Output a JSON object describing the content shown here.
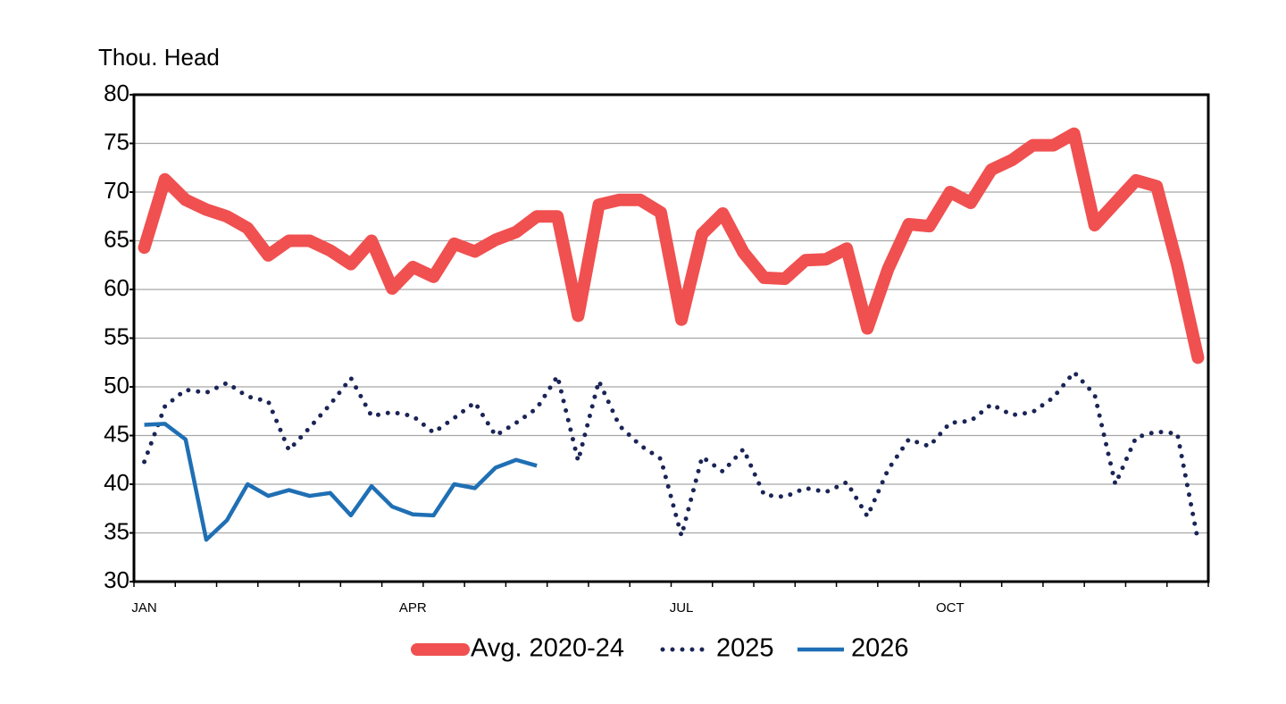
{
  "chart_data": {
    "type": "line",
    "y_label": "Thou. Head",
    "categories": [
      "JAN",
      null,
      null,
      null,
      null,
      null,
      null,
      null,
      null,
      null,
      null,
      null,
      null,
      "APR",
      null,
      null,
      null,
      null,
      null,
      null,
      null,
      null,
      null,
      null,
      null,
      null,
      "JUL",
      null,
      null,
      null,
      null,
      null,
      null,
      null,
      null,
      null,
      null,
      null,
      null,
      "OCT",
      null,
      null,
      null,
      null,
      null,
      null,
      null,
      null,
      null,
      null,
      null,
      null
    ],
    "series": [
      {
        "name": "Avg. 2020-24",
        "color": "#f05050",
        "line_style": "solid",
        "values": [
          64.3,
          71.3,
          69.2,
          68.2,
          67.5,
          66.3,
          63.5,
          65.0,
          65.0,
          64.0,
          62.6,
          65.0,
          60.1,
          62.3,
          61.3,
          64.7,
          63.9,
          65.1,
          65.9,
          67.5,
          67.5,
          57.3,
          68.7,
          69.2,
          69.2,
          67.9,
          56.9,
          65.7,
          67.8,
          63.8,
          61.2,
          61.1,
          63.0,
          63.1,
          64.2,
          56.0,
          62.1,
          66.7,
          66.5,
          70.0,
          68.9,
          72.3,
          73.3,
          74.8,
          74.8,
          76.0,
          66.6,
          68.9,
          71.2,
          70.6,
          62.5,
          53.0
        ]
      },
      {
        "name": "2025",
        "color": "#1a2456",
        "line_style": "dotted",
        "values": [
          42.3,
          48.0,
          49.7,
          49.4,
          50.4,
          49.0,
          48.5,
          43.5,
          45.8,
          48.2,
          50.9,
          47.0,
          47.4,
          47.0,
          45.3,
          46.8,
          48.4,
          45.0,
          46.3,
          47.8,
          51.1,
          42.4,
          50.6,
          46.0,
          44.0,
          42.6,
          34.7,
          42.8,
          41.3,
          43.6,
          38.9,
          38.7,
          39.6,
          39.2,
          40.2,
          36.7,
          41.5,
          44.6,
          43.9,
          46.3,
          46.5,
          48.2,
          47.1,
          47.4,
          48.9,
          51.5,
          49.2,
          40.0,
          44.8,
          45.4,
          45.2,
          34.2
        ]
      },
      {
        "name": "2026",
        "color": "#1f6fb4",
        "line_style": "solid",
        "values": [
          46.1,
          46.2,
          44.6,
          34.3,
          36.3,
          40.0,
          38.8,
          39.4,
          38.8,
          39.1,
          36.8,
          39.8,
          37.7,
          36.9,
          36.8,
          40.0,
          39.6,
          41.7,
          42.5,
          41.9,
          null,
          null,
          null,
          null,
          null,
          null,
          null,
          null,
          null,
          null,
          null,
          null,
          null,
          null,
          null,
          null,
          null,
          null,
          null,
          null,
          null,
          null,
          null,
          null,
          null,
          null,
          null,
          null,
          null,
          null,
          null,
          null
        ]
      }
    ],
    "ylim": [
      30,
      80
    ],
    "yticks": [
      30,
      35,
      40,
      45,
      50,
      55,
      60,
      65,
      70,
      75,
      80
    ],
    "grid": true,
    "legend": "bottom"
  }
}
